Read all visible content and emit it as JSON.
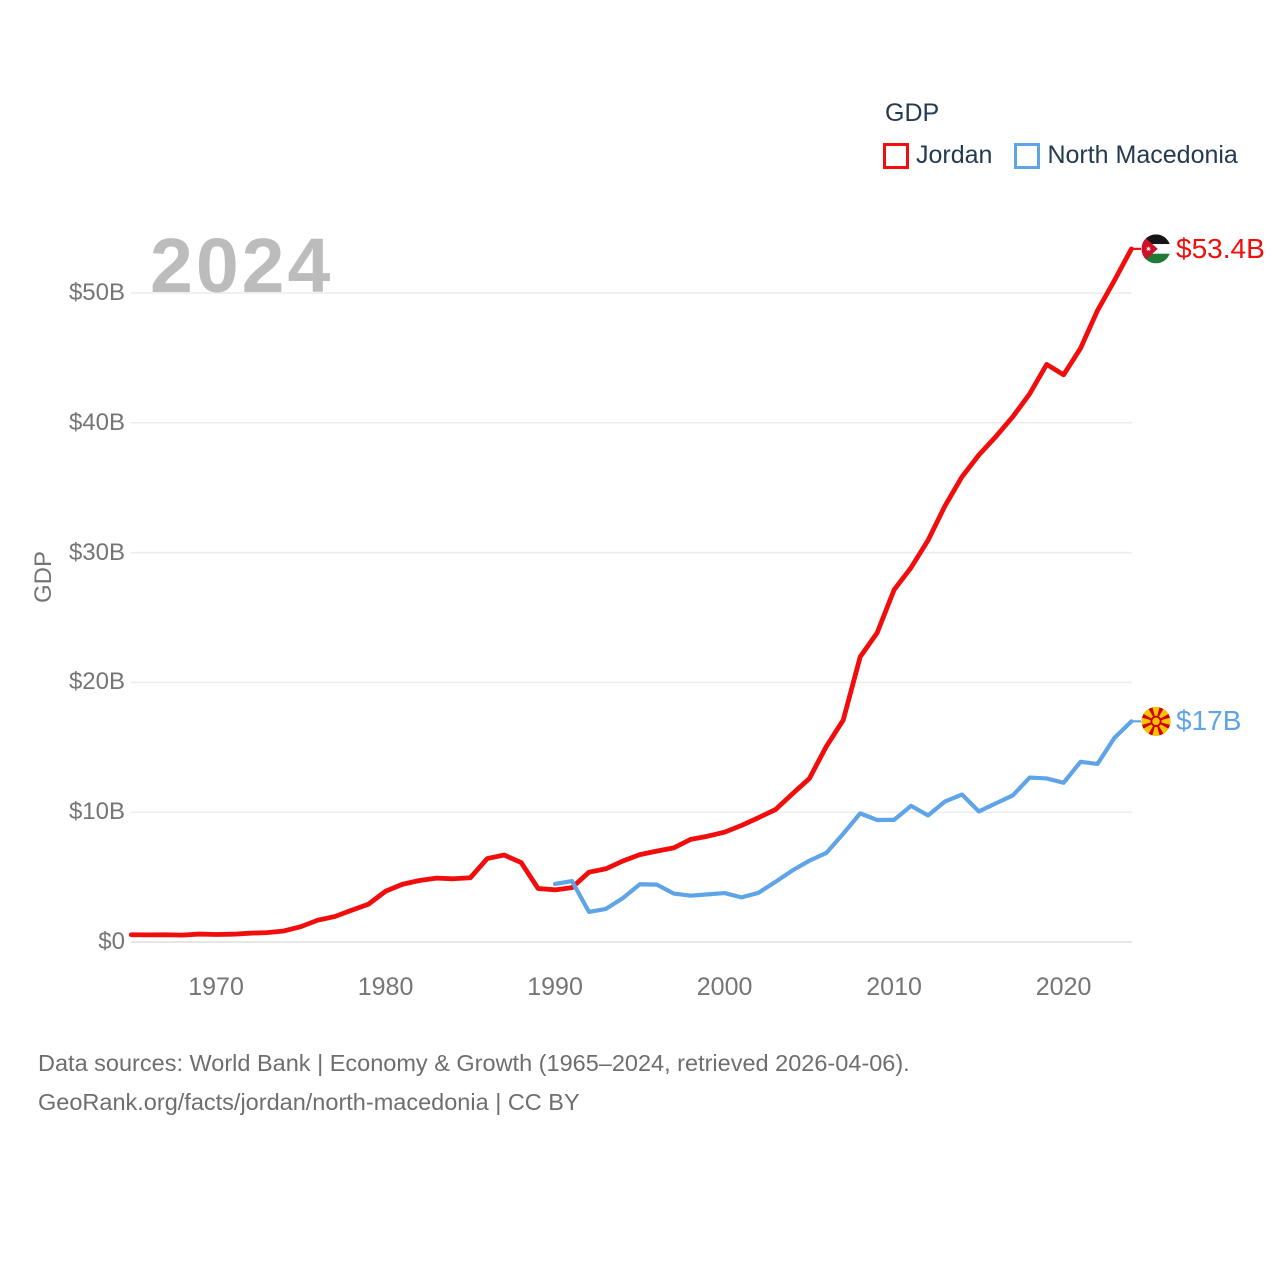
{
  "watermark": "2024",
  "legend": {
    "title": "GDP",
    "items": [
      {
        "label": "Jordan",
        "color": "#f20d0d"
      },
      {
        "label": "North Macedonia",
        "color": "#5fa4e6"
      }
    ]
  },
  "chart_data": {
    "type": "line",
    "title": "GDP",
    "ylabel": "GDP",
    "xlabel": "",
    "x_range": [
      1965,
      2024
    ],
    "ylim": [
      0,
      53.4
    ],
    "grid": "horizontal",
    "legend_position": "top-right",
    "y_ticks": [
      {
        "value": 0,
        "label": "$0"
      },
      {
        "value": 10,
        "label": "$10B"
      },
      {
        "value": 20,
        "label": "$20B"
      },
      {
        "value": 30,
        "label": "$30B"
      },
      {
        "value": 40,
        "label": "$40B"
      },
      {
        "value": 50,
        "label": "$50B"
      }
    ],
    "x_ticks": [
      {
        "value": 1970,
        "label": "1970"
      },
      {
        "value": 1980,
        "label": "1980"
      },
      {
        "value": 1990,
        "label": "1990"
      },
      {
        "value": 2000,
        "label": "2000"
      },
      {
        "value": 2010,
        "label": "2010"
      },
      {
        "value": 2020,
        "label": "2020"
      }
    ],
    "series": [
      {
        "name": "Jordan",
        "color": "#f20d0d",
        "flag": "jordan",
        "start_year": 1965,
        "end_label": "$53.4B",
        "values": [
          0.56,
          0.55,
          0.56,
          0.53,
          0.61,
          0.58,
          0.6,
          0.68,
          0.72,
          0.85,
          1.18,
          1.68,
          1.96,
          2.45,
          2.92,
          3.91,
          4.45,
          4.74,
          4.92,
          4.87,
          4.95,
          6.43,
          6.7,
          6.12,
          4.12,
          4.02,
          4.19,
          5.38,
          5.64,
          6.24,
          6.73,
          7.0,
          7.25,
          7.91,
          8.15,
          8.46,
          8.98,
          9.58,
          10.2,
          11.41,
          12.59,
          15.06,
          17.1,
          21.97,
          23.82,
          27.13,
          28.84,
          30.94,
          33.59,
          35.83,
          37.52,
          38.93,
          40.46,
          42.23,
          44.5,
          43.7,
          45.74,
          48.65,
          50.97,
          53.4
        ]
      },
      {
        "name": "North Macedonia",
        "color": "#5fa4e6",
        "flag": "north-macedonia",
        "start_year": 1990,
        "end_label": "$17B",
        "values": [
          4.47,
          4.69,
          2.32,
          2.55,
          3.38,
          4.45,
          4.42,
          3.73,
          3.57,
          3.67,
          3.77,
          3.44,
          3.79,
          4.63,
          5.51,
          6.26,
          6.86,
          8.34,
          9.91,
          9.4,
          9.41,
          10.49,
          9.75,
          10.82,
          11.36,
          10.06,
          10.68,
          11.29,
          12.67,
          12.6,
          12.27,
          13.88,
          13.72,
          15.73,
          17.0
        ]
      }
    ]
  },
  "footer": {
    "line1": "Data sources: World Bank | Economy & Growth (1965–2024, retrieved 2026-04-06).",
    "line2": "GeoRank.org/facts/jordan/north-macedonia | CC BY"
  }
}
